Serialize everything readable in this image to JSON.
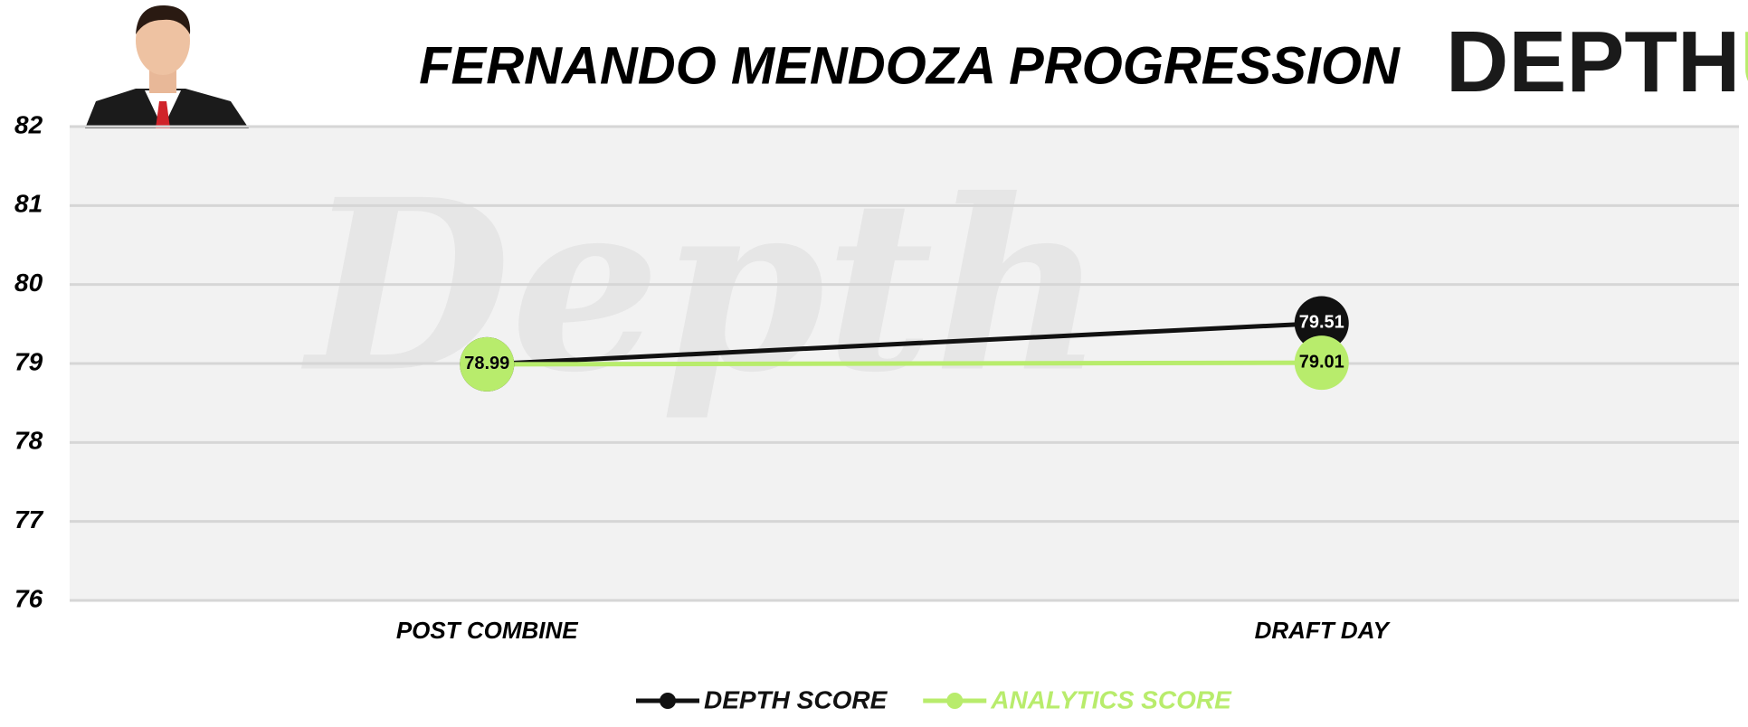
{
  "chart_data": {
    "type": "line",
    "title": "FERNANDO MENDOZA PROGRESSION",
    "logo": [
      "DEPTH",
      "U"
    ],
    "watermark": "Depth",
    "categories": [
      "POST COMBINE",
      "DRAFT DAY"
    ],
    "series": [
      {
        "name": "DEPTH SCORE",
        "color": "#111111",
        "values": [
          78.99,
          79.51
        ]
      },
      {
        "name": "ANALYTICS SCORE",
        "color": "#b8ec6c",
        "values": [
          78.99,
          79.01
        ]
      }
    ],
    "ylim": [
      76,
      82
    ],
    "yticks": [
      76,
      77,
      78,
      79,
      80,
      81,
      82
    ],
    "grid": true,
    "legend": "bottom"
  }
}
